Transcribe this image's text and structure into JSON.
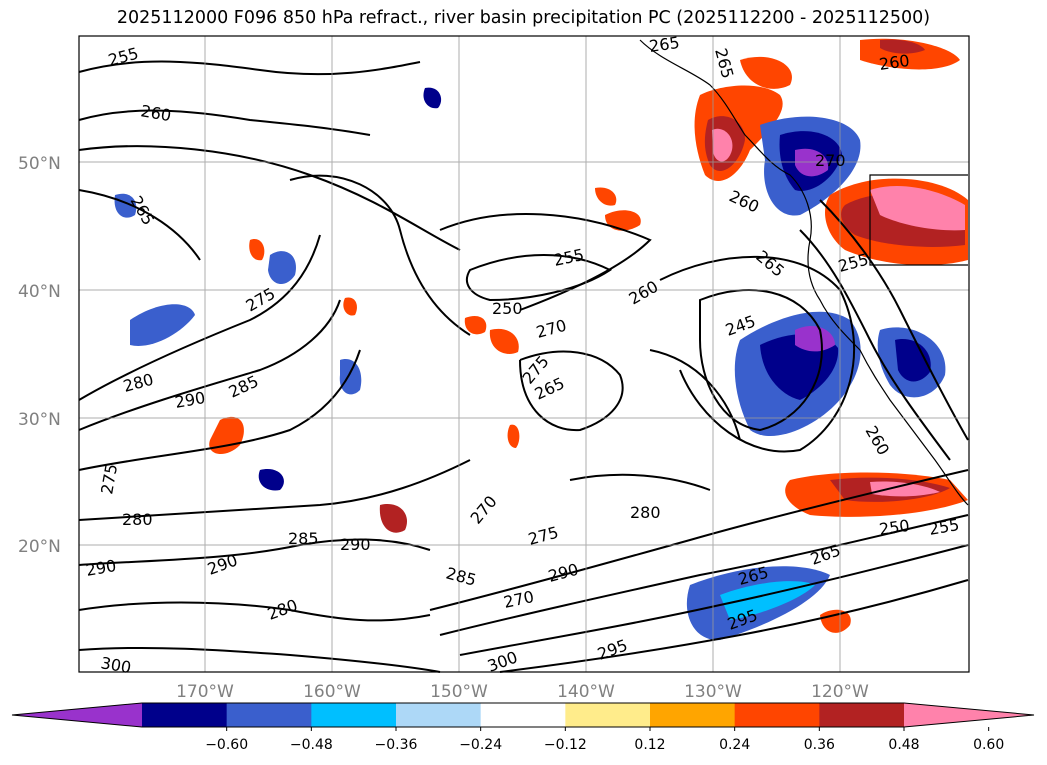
{
  "title": "2025112000 F096 850 hPa refract., river basin precipitation PC (2025112200 - 2025112500)",
  "latitude_labels": [
    "50°N",
    "40°N",
    "30°N",
    "20°N"
  ],
  "longitude_labels": [
    "170°W",
    "160°W",
    "150°W",
    "140°W",
    "130°W",
    "120°W"
  ],
  "colorbar": {
    "colors": [
      "#9932cc",
      "#00008b",
      "#3a5fcd",
      "#00bfff",
      "#add8f7",
      "#ffffff",
      "#ffec8b",
      "#ffa500",
      "#ff4500",
      "#b22222",
      "#ff82ab"
    ],
    "tick_labels": [
      "−0.60",
      "−0.48",
      "−0.36",
      "−0.24",
      "−0.12",
      "0.12",
      "0.24",
      "0.36",
      "0.48",
      "0.60"
    ]
  },
  "contour_labels": [
    "255",
    "260",
    "265",
    "265",
    "270",
    "260",
    "265",
    "260",
    "275",
    "255",
    "250",
    "260",
    "270",
    "245",
    "265",
    "275",
    "265",
    "255",
    "280",
    "290",
    "285",
    "260",
    "275",
    "280",
    "285",
    "290",
    "270",
    "275",
    "280",
    "290",
    "285",
    "290",
    "250",
    "255",
    "265",
    "280",
    "270",
    "265",
    "295",
    "300",
    "290",
    "295",
    "300"
  ]
}
